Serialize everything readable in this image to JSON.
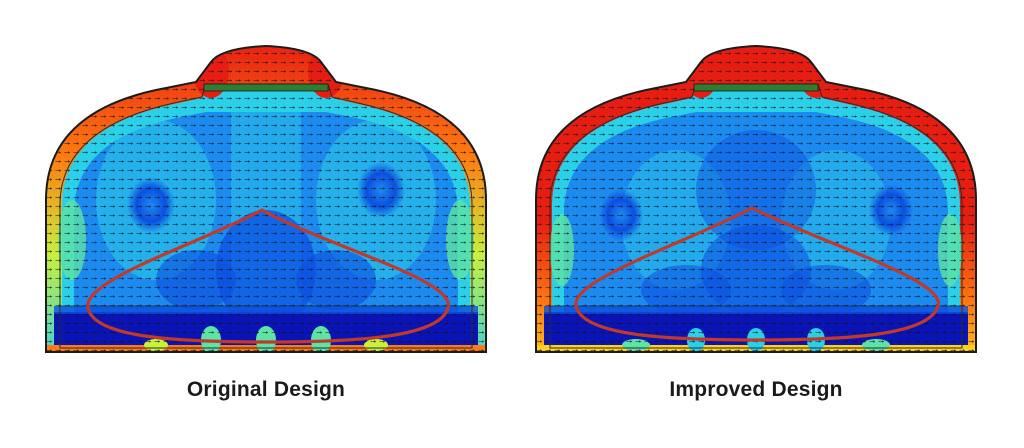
{
  "panels": [
    {
      "caption": "Original Design",
      "wall_band_color": "#e63b2e",
      "bottom_band_color": "#0a1fbf",
      "highlight_ring_color": "#c0392b"
    },
    {
      "caption": "Improved Design",
      "wall_band_color": "#e8221a",
      "bottom_band_color": "#0a1fbf",
      "highlight_ring_color": "#c0392b"
    }
  ],
  "colormap": [
    "#0a14b4",
    "#0b4fe0",
    "#1c8bf0",
    "#2ad0e8",
    "#5de3a5",
    "#c8f03c",
    "#ffd21a",
    "#ff7a10",
    "#e61e12"
  ]
}
